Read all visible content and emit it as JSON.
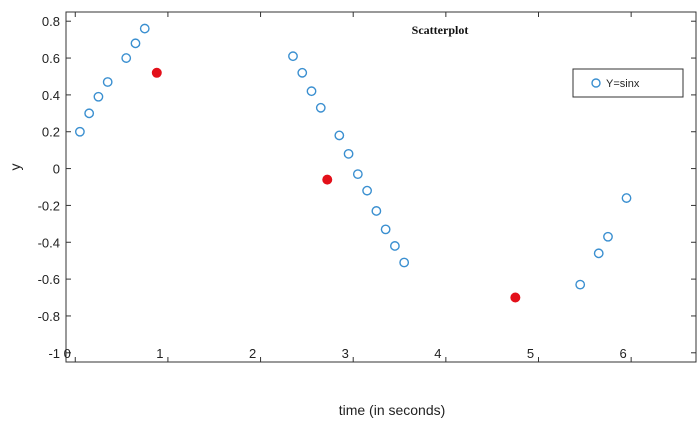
{
  "chart_data": {
    "type": "scatter",
    "title": "Scatterplot",
    "xlabel": "time (in seconds)",
    "ylabel": "y",
    "xlim": [
      -0.1,
      6.7
    ],
    "ylim": [
      -1.05,
      0.85
    ],
    "x_ticks": [
      0,
      1,
      2,
      3,
      4,
      5,
      6
    ],
    "y_ticks": [
      0.8,
      0.6,
      0.4,
      0.2,
      0,
      -0.2,
      -0.4,
      -0.6,
      -0.8,
      -1
    ],
    "y_tick_labels": [
      "0.8",
      "0.6",
      "0.4",
      "0.2",
      "0",
      "-0.2",
      "-0.4",
      "-0.6",
      "-0.8",
      "-1"
    ],
    "legend_position": "top-right",
    "grid": false,
    "series": [
      {
        "name": "Y=sinx",
        "marker": "hollow-circle",
        "color": "#3a8fd0",
        "x": [
          0.05,
          0.15,
          0.25,
          0.35,
          0.55,
          0.65,
          0.75,
          2.35,
          2.45,
          2.55,
          2.65,
          2.85,
          2.95,
          3.05,
          3.15,
          3.25,
          3.35,
          3.45,
          3.55,
          5.45,
          5.65,
          5.75,
          5.95
        ],
        "y": [
          0.2,
          0.3,
          0.39,
          0.47,
          0.6,
          0.68,
          0.76,
          0.61,
          0.52,
          0.42,
          0.33,
          0.18,
          0.08,
          -0.03,
          -0.12,
          -0.23,
          -0.33,
          -0.42,
          -0.51,
          -0.63,
          -0.46,
          -0.37,
          -0.16
        ]
      },
      {
        "marker": "filled-circle",
        "color": "#e3101a",
        "x": [
          0.88,
          2.72,
          4.75
        ],
        "y": [
          0.52,
          -0.06,
          -0.7
        ]
      }
    ]
  }
}
